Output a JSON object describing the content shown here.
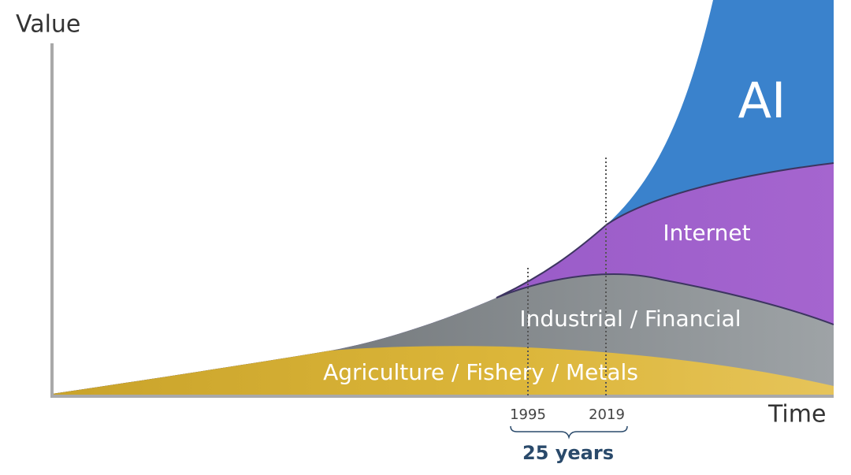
{
  "axes": {
    "y_label": "Value",
    "x_label": "Time"
  },
  "timeline": {
    "start": "1995",
    "end": "2019",
    "span": "25 years"
  },
  "layers": [
    {
      "label": "Agriculture / Fishery / Metals"
    },
    {
      "label": "Industrial / Financial"
    },
    {
      "label": "Internet"
    },
    {
      "label": "AI"
    }
  ]
}
